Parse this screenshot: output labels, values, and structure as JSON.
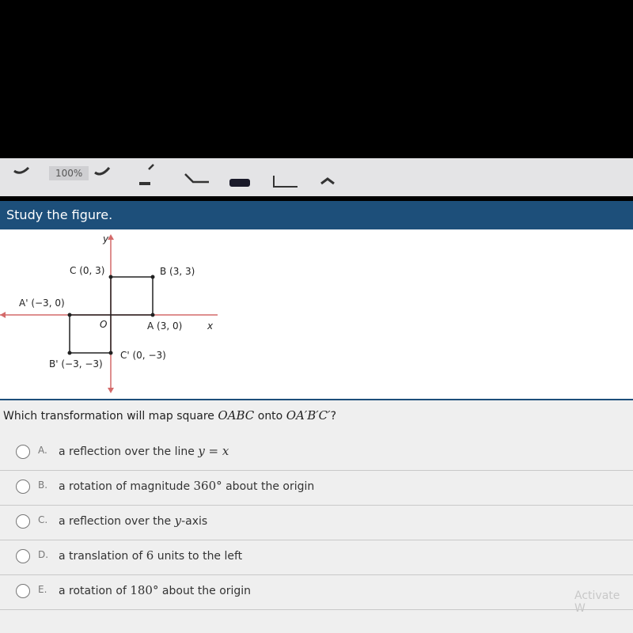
{
  "toolbar": {
    "zoom": "100%"
  },
  "banner": {
    "title": "Study the figure."
  },
  "figure": {
    "y_axis": "y",
    "x_axis": "x",
    "origin": "O",
    "labels": {
      "C": "C (0, 3)",
      "B": "B (3, 3)",
      "A_prime": "A' (−3, 0)",
      "A": "A (3, 0)",
      "C_prime": "C' (0, −3)",
      "B_prime": "B' (−3, −3)"
    }
  },
  "question": {
    "parts": [
      {
        "text": "Which transformation will map square ",
        "style": "plain"
      },
      {
        "text": "OABC",
        "style": "math"
      },
      {
        "text": " onto ",
        "style": "plain"
      },
      {
        "text": "OA′B′C′",
        "style": "math"
      },
      {
        "text": "?",
        "style": "plain"
      }
    ]
  },
  "options": [
    {
      "letter": "A.",
      "parts": [
        {
          "text": "a reflection over the line ",
          "style": "plain"
        },
        {
          "text": "y = x",
          "style": "math"
        }
      ]
    },
    {
      "letter": "B.",
      "parts": [
        {
          "text": "a rotation of magnitude ",
          "style": "plain"
        },
        {
          "text": "360°",
          "style": "num"
        },
        {
          "text": " about the origin",
          "style": "plain"
        }
      ]
    },
    {
      "letter": "C.",
      "parts": [
        {
          "text": "a reflection over the ",
          "style": "plain"
        },
        {
          "text": "y",
          "style": "math"
        },
        {
          "text": "-axis",
          "style": "plain"
        }
      ]
    },
    {
      "letter": "D.",
      "parts": [
        {
          "text": "a translation of ",
          "style": "plain"
        },
        {
          "text": "6",
          "style": "num"
        },
        {
          "text": " units to the left",
          "style": "plain"
        }
      ]
    },
    {
      "letter": "E.",
      "parts": [
        {
          "text": "a rotation of ",
          "style": "plain"
        },
        {
          "text": "180°",
          "style": "num"
        },
        {
          "text": " about the origin",
          "style": "plain"
        }
      ]
    }
  ],
  "watermark": "Activate W"
}
